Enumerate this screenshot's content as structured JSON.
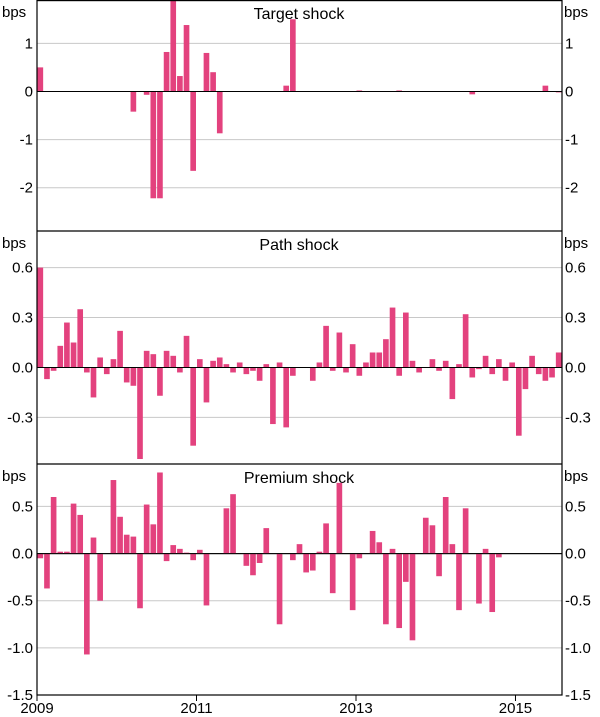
{
  "chart_data": [
    {
      "type": "bar",
      "title": "Target shock",
      "unit_left": "bps",
      "unit_right": "bps",
      "ylim": [
        -2.9,
        1.9
      ],
      "yticks": [
        1,
        0,
        -1,
        -2
      ],
      "ytick_labels": [
        "1",
        "0",
        "-1",
        "-2"
      ],
      "color": "#e3427e",
      "series": [
        {
          "x": [
            "2009-01",
            "2010-03",
            "2010-05",
            "2010-06",
            "2010-07",
            "2010-08",
            "2010-09",
            "2010-10",
            "2010-11",
            "2010-12",
            "2011-01",
            "2011-02",
            "2011-03",
            "2011-04",
            "2011-05",
            "2011-06",
            "2012-02",
            "2012-03",
            "2013-01",
            "2013-07",
            "2014-06",
            "2015-05",
            "2015-06",
            "2015-07"
          ],
          "values": [
            0.5,
            -0.42,
            -0.07,
            -2.22,
            -2.22,
            0.82,
            1.9,
            0.32,
            1.38,
            -1.65,
            0.0,
            0.8,
            0.4,
            -0.87,
            0.0,
            0.0,
            0.12,
            1.5,
            0.02,
            0.02,
            -0.06,
            0.12,
            0.0,
            -0.02
          ]
        }
      ]
    },
    {
      "type": "bar",
      "title": "Path shock",
      "unit_left": "bps",
      "unit_right": "bps",
      "ylim": [
        -0.58,
        0.82
      ],
      "yticks": [
        0.6,
        0.3,
        0.0,
        -0.3
      ],
      "ytick_labels": [
        "0.6",
        "0.3",
        "0.0",
        "-0.3"
      ],
      "color": "#e3427e",
      "series": [
        {
          "x": [
            "2009-01",
            "2009-02",
            "2009-03",
            "2009-04",
            "2009-05",
            "2009-06",
            "2009-07",
            "2009-08",
            "2009-09",
            "2009-10",
            "2009-11",
            "2009-12",
            "2010-01",
            "2010-02",
            "2010-03",
            "2010-04",
            "2010-05",
            "2010-06",
            "2010-07",
            "2010-08",
            "2010-09",
            "2010-10",
            "2010-11",
            "2010-12",
            "2011-01",
            "2011-02",
            "2011-03",
            "2011-04",
            "2011-05",
            "2011-06",
            "2011-07",
            "2011-08",
            "2011-09",
            "2011-10",
            "2011-11",
            "2011-12",
            "2012-01",
            "2012-02",
            "2012-03",
            "2012-04",
            "2012-05",
            "2012-06",
            "2012-07",
            "2012-08",
            "2012-09",
            "2012-10",
            "2012-11",
            "2012-12",
            "2013-01",
            "2013-02",
            "2013-03",
            "2013-04",
            "2013-05",
            "2013-06",
            "2013-07",
            "2013-08",
            "2013-09",
            "2013-10",
            "2013-11",
            "2013-12",
            "2014-01",
            "2014-02",
            "2014-03",
            "2014-04",
            "2014-05",
            "2014-06",
            "2014-07",
            "2014-08",
            "2014-09",
            "2014-10",
            "2014-11",
            "2014-12",
            "2015-01",
            "2015-02",
            "2015-03",
            "2015-04",
            "2015-05",
            "2015-06",
            "2015-07"
          ],
          "values": [
            0.6,
            -0.07,
            -0.02,
            0.13,
            0.27,
            0.15,
            0.35,
            -0.03,
            -0.18,
            0.06,
            -0.04,
            0.05,
            0.22,
            -0.09,
            -0.11,
            -0.55,
            0.1,
            0.08,
            -0.17,
            0.1,
            0.07,
            -0.03,
            0.19,
            -0.47,
            0.05,
            -0.21,
            0.04,
            0.06,
            0.02,
            -0.03,
            0.03,
            -0.04,
            -0.02,
            -0.08,
            0.02,
            -0.34,
            0.03,
            -0.36,
            -0.05,
            0.0,
            0.0,
            -0.08,
            0.03,
            0.25,
            -0.02,
            0.21,
            -0.03,
            0.14,
            -0.05,
            0.03,
            0.09,
            0.09,
            0.17,
            0.36,
            -0.05,
            0.33,
            0.04,
            -0.03,
            0.0,
            0.05,
            -0.02,
            0.04,
            -0.19,
            0.02,
            0.32,
            -0.06,
            -0.01,
            0.07,
            -0.04,
            0.05,
            -0.08,
            0.03,
            -0.41,
            -0.13,
            0.07,
            -0.04,
            -0.08,
            -0.06,
            0.09
          ]
        }
      ]
    },
    {
      "type": "bar",
      "title": "Premium shock",
      "unit_left": "bps",
      "unit_right": "bps",
      "ylim": [
        -1.5,
        0.95
      ],
      "yticks": [
        0.5,
        0.0,
        -0.5,
        -1.0,
        -1.5
      ],
      "ytick_labels": [
        "0.5",
        "0.0",
        "-0.5",
        "-1.0",
        "-1.5"
      ],
      "xticks": [
        "2009-01",
        "2011-01",
        "2013-01",
        "2015-01"
      ],
      "xtick_labels": [
        "2009",
        "2011",
        "2013",
        "2015"
      ],
      "color": "#e3427e",
      "series": [
        {
          "x": [
            "2009-01",
            "2009-02",
            "2009-03",
            "2009-04",
            "2009-05",
            "2009-06",
            "2009-07",
            "2009-08",
            "2009-09",
            "2009-10",
            "2009-11",
            "2009-12",
            "2010-01",
            "2010-02",
            "2010-03",
            "2010-04",
            "2010-05",
            "2010-06",
            "2010-07",
            "2010-08",
            "2010-09",
            "2010-10",
            "2010-11",
            "2010-12",
            "2011-01",
            "2011-02",
            "2011-03",
            "2011-04",
            "2011-05",
            "2011-06",
            "2011-07",
            "2011-08",
            "2011-09",
            "2011-10",
            "2011-11",
            "2011-12",
            "2012-01",
            "2012-02",
            "2012-03",
            "2012-04",
            "2012-05",
            "2012-06",
            "2012-07",
            "2012-08",
            "2012-09",
            "2012-10",
            "2012-11",
            "2012-12",
            "2013-01",
            "2013-02",
            "2013-03",
            "2013-04",
            "2013-05",
            "2013-06",
            "2013-07",
            "2013-08",
            "2013-09",
            "2013-10",
            "2013-11",
            "2013-12",
            "2014-01",
            "2014-02",
            "2014-03",
            "2014-04",
            "2014-05",
            "2014-06",
            "2014-07",
            "2014-08",
            "2014-09",
            "2014-10",
            "2014-11",
            "2014-12",
            "2015-01",
            "2015-02",
            "2015-03",
            "2015-04",
            "2015-05",
            "2015-06",
            "2015-07"
          ],
          "values": [
            -0.05,
            -0.37,
            0.6,
            0.02,
            0.02,
            0.53,
            0.41,
            -1.07,
            0.17,
            -0.5,
            0.0,
            0.78,
            0.39,
            0.2,
            0.18,
            -0.58,
            0.52,
            0.31,
            0.86,
            -0.08,
            0.09,
            0.05,
            0.01,
            -0.07,
            0.04,
            -0.55,
            0.0,
            0.0,
            0.48,
            0.63,
            0.0,
            -0.13,
            -0.23,
            -0.1,
            0.27,
            0.0,
            -0.75,
            0.0,
            -0.07,
            0.1,
            -0.2,
            -0.18,
            0.02,
            0.32,
            -0.42,
            0.75,
            0.0,
            -0.6,
            -0.05,
            0.0,
            0.24,
            0.12,
            -0.75,
            0.05,
            -0.79,
            -0.3,
            -0.92,
            0.0,
            0.38,
            0.3,
            -0.24,
            0.6,
            0.1,
            -0.6,
            0.48,
            0.0,
            -0.53,
            0.05,
            -0.62,
            -0.04,
            0.0,
            0.0,
            0.0,
            0.0,
            0.0,
            0.0,
            0.0,
            0.0,
            0.0
          ]
        }
      ]
    }
  ]
}
